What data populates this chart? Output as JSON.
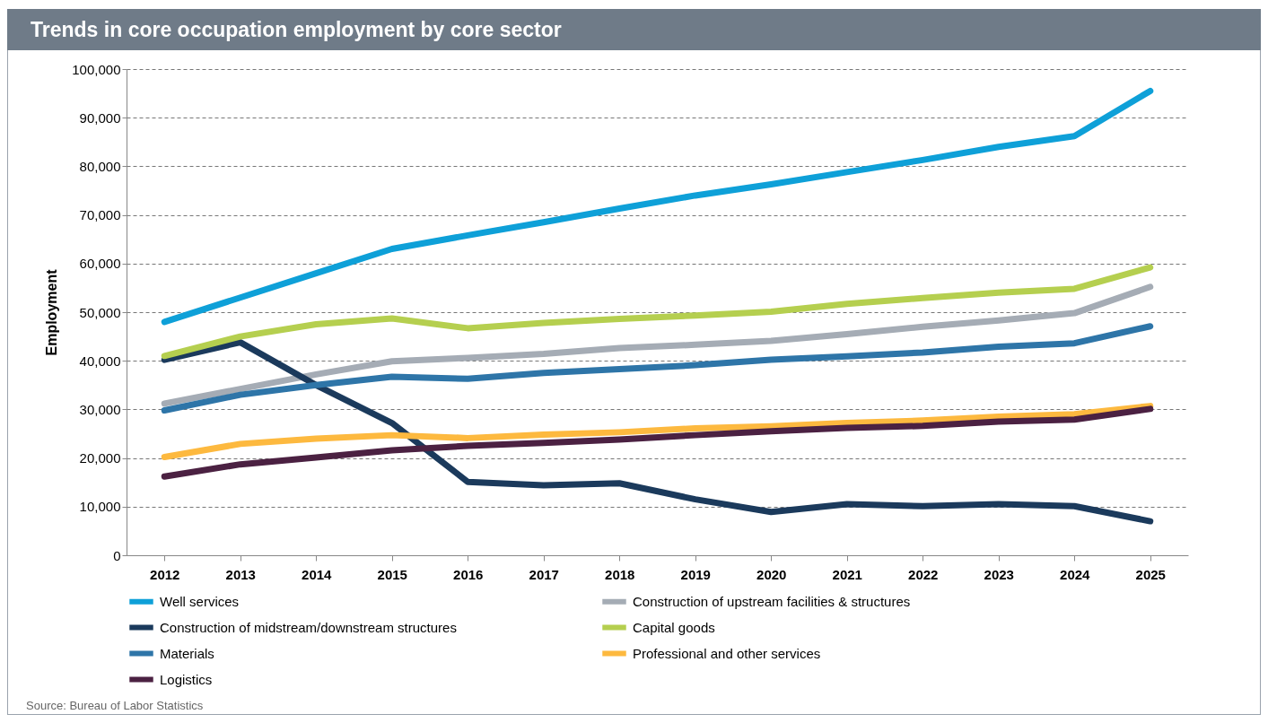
{
  "chart_data": {
    "type": "line",
    "title": "Trends in core occupation employment by core sector",
    "ylabel": "Employment",
    "categories": [
      "2012",
      "2013",
      "2014",
      "2015",
      "2016",
      "2017",
      "2018",
      "2019",
      "2020",
      "2021",
      "2022",
      "2023",
      "2024",
      "2025"
    ],
    "series": [
      {
        "name": "Well services",
        "color": "#0ea0d8",
        "values": [
          48000,
          53000,
          58000,
          63000,
          65800,
          68500,
          71300,
          74000,
          76300,
          78800,
          81300,
          84000,
          86200,
          95500
        ]
      },
      {
        "name": "Construction of upstream facilities & structures",
        "color": "#a5acb5",
        "values": [
          31200,
          34200,
          37200,
          39900,
          40600,
          41400,
          42600,
          43300,
          44100,
          45500,
          47000,
          48300,
          49800,
          55200
        ]
      },
      {
        "name": "Construction of midstream/downstream structures",
        "color": "#1b3a5c",
        "values": [
          40200,
          43800,
          35000,
          27200,
          15100,
          14400,
          14800,
          11500,
          8900,
          10500,
          10100,
          10500,
          10100,
          7000
        ]
      },
      {
        "name": "Capital goods",
        "color": "#b5cf4f",
        "values": [
          41000,
          45000,
          47500,
          48700,
          46700,
          47800,
          48600,
          49300,
          50100,
          51700,
          52900,
          54000,
          54800,
          59200
        ]
      },
      {
        "name": "Materials",
        "color": "#2e75a8",
        "values": [
          29800,
          33000,
          35000,
          36700,
          36300,
          37500,
          38300,
          39100,
          40200,
          40900,
          41700,
          42900,
          43600,
          47100
        ]
      },
      {
        "name": "Professional and other services",
        "color": "#fdb93f",
        "values": [
          20200,
          22900,
          24000,
          24700,
          24100,
          24800,
          25300,
          26100,
          26500,
          27200,
          27700,
          28500,
          29000,
          30700
        ]
      },
      {
        "name": "Logistics",
        "color": "#4b2142",
        "values": [
          16200,
          18700,
          20100,
          21600,
          22500,
          23100,
          23800,
          24700,
          25500,
          26200,
          26600,
          27500,
          27900,
          30100
        ]
      }
    ],
    "ylim": [
      0,
      100000
    ],
    "yticks": [
      0,
      {
        "value": 10000,
        "label": "10,000"
      },
      {
        "value": 20000,
        "label": "20,000"
      },
      {
        "value": 30000,
        "label": "30,000"
      },
      {
        "value": 40000,
        "label": "40,000"
      },
      {
        "value": 50000,
        "label": "50,000"
      },
      {
        "value": 60000,
        "label": "60,000"
      },
      {
        "value": 70000,
        "label": "70,000"
      },
      {
        "value": 80000,
        "label": "80,000"
      },
      {
        "value": 90000,
        "label": "90,000"
      },
      {
        "value": 100000,
        "label": "100,000"
      }
    ],
    "grid": "y",
    "legend": "bottom",
    "marker": "none",
    "line_style": "solid",
    "annotations": [
      "Source: Bureau of Labor Statistics"
    ]
  }
}
